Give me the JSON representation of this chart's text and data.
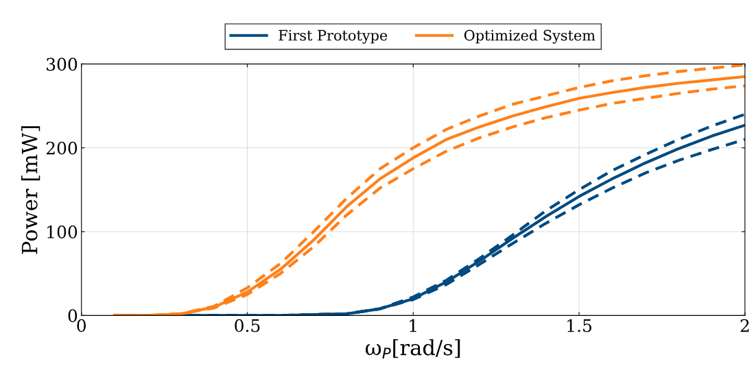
{
  "chart_data": {
    "type": "line",
    "xlabel": "ω$_{P}$[rad/s]",
    "ylabel": "Power [mW]",
    "xlim": [
      0,
      2
    ],
    "xticks": [
      0,
      0.5,
      1,
      1.5,
      2
    ],
    "ylim": [
      0,
      300
    ],
    "yticks": [
      0,
      100,
      200,
      300
    ],
    "grid": true,
    "legend": "top",
    "marker": "none",
    "x": [
      0.1,
      0.2,
      0.3,
      0.4,
      0.5,
      0.6,
      0.7,
      0.8,
      0.9,
      1.0,
      1.1,
      1.2,
      1.3,
      1.4,
      1.5,
      1.6,
      1.7,
      1.8,
      1.9,
      2.0
    ],
    "series": [
      {
        "name": "First Prototype",
        "color": "#004a7f",
        "line_style": "solid",
        "values": [
          0,
          0,
          0,
          0,
          0,
          0,
          1,
          2,
          8,
          20,
          40,
          65,
          92,
          118,
          142,
          163,
          182,
          199,
          214,
          227
        ]
      },
      {
        "name": "Optimized System",
        "color": "#ff8019",
        "line_style": "solid",
        "values": [
          0,
          0,
          2,
          10,
          28,
          55,
          90,
          130,
          163,
          188,
          210,
          225,
          238,
          249,
          259,
          266,
          272,
          277,
          281,
          285
        ]
      },
      {
        "color": "#004a7f",
        "line_style": "dashed",
        "values": [
          0,
          0,
          0,
          0,
          0,
          0,
          1,
          2,
          8,
          22,
          42,
          68,
          96,
          125,
          150,
          173,
          192,
          210,
          226,
          240
        ]
      },
      {
        "color": "#004a7f",
        "line_style": "dashed",
        "values": [
          0,
          0,
          0,
          0,
          0,
          0,
          1,
          2,
          8,
          19,
          37,
          61,
          86,
          110,
          132,
          152,
          170,
          185,
          198,
          210
        ]
      },
      {
        "color": "#ff8019",
        "line_style": "dashed",
        "values": [
          0,
          0,
          2,
          11,
          33,
          62,
          100,
          140,
          175,
          200,
          222,
          238,
          252,
          262,
          272,
          280,
          286,
          291,
          295,
          299
        ]
      },
      {
        "color": "#ff8019",
        "line_style": "dashed",
        "values": [
          0,
          0,
          2,
          9,
          25,
          50,
          82,
          120,
          152,
          175,
          196,
          212,
          225,
          236,
          245,
          253,
          259,
          265,
          270,
          274
        ]
      }
    ]
  }
}
